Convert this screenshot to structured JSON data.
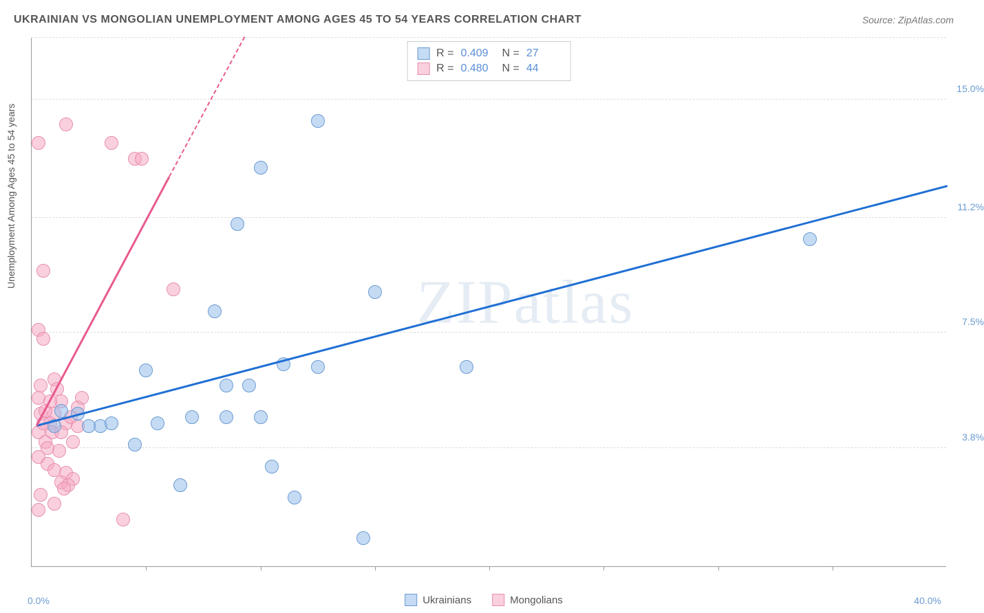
{
  "title": "UKRAINIAN VS MONGOLIAN UNEMPLOYMENT AMONG AGES 45 TO 54 YEARS CORRELATION CHART",
  "source": "Source: ZipAtlas.com",
  "watermark": "ZIPatlas",
  "y_axis_label": "Unemployment Among Ages 45 to 54 years",
  "x_axis": {
    "min": 0,
    "max": 40,
    "min_label": "0.0%",
    "max_label": "40.0%",
    "tick_step": 5
  },
  "y_axis": {
    "min": 0,
    "max": 17,
    "ticks": [
      {
        "value": 3.8,
        "label": "3.8%"
      },
      {
        "value": 7.5,
        "label": "7.5%"
      },
      {
        "value": 11.2,
        "label": "11.2%"
      },
      {
        "value": 15.0,
        "label": "15.0%"
      }
    ]
  },
  "series": [
    {
      "name": "Ukrainians",
      "color_fill": "rgba(150, 190, 235, 0.55)",
      "color_stroke": "#6b9bd1",
      "line_color": "#1f6fd4",
      "marker_radius": 10,
      "R": "0.409",
      "N": "27",
      "trend": {
        "x1": 0.2,
        "y1": 4.5,
        "x2": 40,
        "y2": 12.2
      },
      "points": [
        {
          "x": 12.5,
          "y": 14.3
        },
        {
          "x": 10.0,
          "y": 12.8
        },
        {
          "x": 9.0,
          "y": 11.0
        },
        {
          "x": 15.0,
          "y": 8.8
        },
        {
          "x": 34.0,
          "y": 10.5
        },
        {
          "x": 19.0,
          "y": 6.4
        },
        {
          "x": 8.0,
          "y": 8.2
        },
        {
          "x": 5.0,
          "y": 6.3
        },
        {
          "x": 11.0,
          "y": 6.5
        },
        {
          "x": 12.5,
          "y": 6.4
        },
        {
          "x": 8.5,
          "y": 5.8
        },
        {
          "x": 9.5,
          "y": 5.8
        },
        {
          "x": 7.0,
          "y": 4.8
        },
        {
          "x": 8.5,
          "y": 4.8
        },
        {
          "x": 10.0,
          "y": 4.8
        },
        {
          "x": 4.5,
          "y": 3.9
        },
        {
          "x": 6.5,
          "y": 2.6
        },
        {
          "x": 10.5,
          "y": 3.2
        },
        {
          "x": 11.5,
          "y": 2.2
        },
        {
          "x": 14.5,
          "y": 0.9
        },
        {
          "x": 3.0,
          "y": 4.5
        },
        {
          "x": 2.0,
          "y": 4.9
        },
        {
          "x": 2.5,
          "y": 4.5
        },
        {
          "x": 3.5,
          "y": 4.6
        },
        {
          "x": 1.3,
          "y": 5.0
        },
        {
          "x": 1.0,
          "y": 4.5
        },
        {
          "x": 5.5,
          "y": 4.6
        }
      ]
    },
    {
      "name": "Mongolians",
      "color_fill": "rgba(245, 170, 195, 0.55)",
      "color_stroke": "#e78fb0",
      "line_color": "#e85a8f",
      "marker_radius": 10,
      "R": "0.480",
      "N": "44",
      "trend": {
        "x1": 0.2,
        "y1": 4.5,
        "x2": 6.0,
        "y2": 12.5
      },
      "trend_dash": {
        "x1": 6.0,
        "y1": 12.5,
        "x2": 9.3,
        "y2": 17.0
      },
      "points": [
        {
          "x": 1.5,
          "y": 14.2
        },
        {
          "x": 0.3,
          "y": 13.6
        },
        {
          "x": 3.5,
          "y": 13.6
        },
        {
          "x": 4.5,
          "y": 13.1
        },
        {
          "x": 4.8,
          "y": 13.1
        },
        {
          "x": 0.5,
          "y": 9.5
        },
        {
          "x": 6.2,
          "y": 8.9
        },
        {
          "x": 0.3,
          "y": 7.6
        },
        {
          "x": 0.5,
          "y": 7.3
        },
        {
          "x": 1.0,
          "y": 6.0
        },
        {
          "x": 1.3,
          "y": 5.3
        },
        {
          "x": 2.2,
          "y": 5.4
        },
        {
          "x": 2.0,
          "y": 5.1
        },
        {
          "x": 1.0,
          "y": 4.9
        },
        {
          "x": 0.3,
          "y": 5.4
        },
        {
          "x": 0.4,
          "y": 4.9
        },
        {
          "x": 0.8,
          "y": 4.6
        },
        {
          "x": 1.5,
          "y": 4.6
        },
        {
          "x": 0.3,
          "y": 4.3
        },
        {
          "x": 0.6,
          "y": 4.0
        },
        {
          "x": 1.8,
          "y": 4.0
        },
        {
          "x": 0.3,
          "y": 3.5
        },
        {
          "x": 0.7,
          "y": 3.3
        },
        {
          "x": 1.0,
          "y": 3.1
        },
        {
          "x": 1.5,
          "y": 3.0
        },
        {
          "x": 1.8,
          "y": 2.8
        },
        {
          "x": 1.3,
          "y": 2.7
        },
        {
          "x": 1.6,
          "y": 2.6
        },
        {
          "x": 0.4,
          "y": 2.3
        },
        {
          "x": 1.4,
          "y": 2.5
        },
        {
          "x": 1.0,
          "y": 2.0
        },
        {
          "x": 0.3,
          "y": 1.8
        },
        {
          "x": 4.0,
          "y": 1.5
        },
        {
          "x": 0.6,
          "y": 5.0
        },
        {
          "x": 0.8,
          "y": 5.3
        },
        {
          "x": 1.1,
          "y": 5.7
        },
        {
          "x": 0.4,
          "y": 5.8
        },
        {
          "x": 0.9,
          "y": 4.3
        },
        {
          "x": 1.3,
          "y": 4.3
        },
        {
          "x": 1.7,
          "y": 4.8
        },
        {
          "x": 2.0,
          "y": 4.5
        },
        {
          "x": 0.5,
          "y": 4.6
        },
        {
          "x": 1.2,
          "y": 3.7
        },
        {
          "x": 0.7,
          "y": 3.8
        }
      ]
    }
  ],
  "chart_bg": "#ffffff",
  "grid_color": "#dddddd"
}
